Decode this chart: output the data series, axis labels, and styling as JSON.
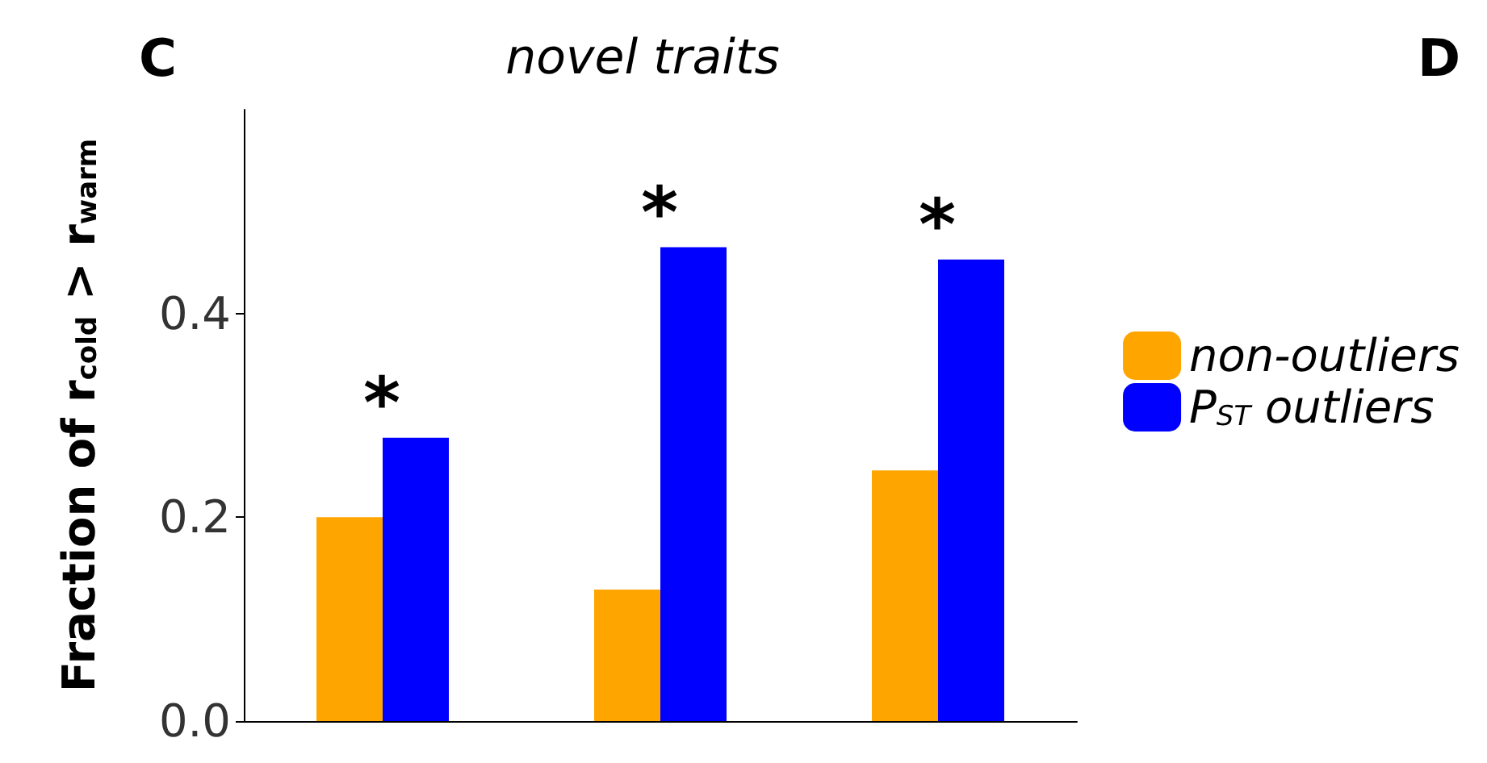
{
  "chart_data": {
    "type": "bar",
    "title": "novel traits",
    "ylabel": "Fraction of r$_{cold}$ > r$_{warm}$",
    "categories": [
      null,
      null,
      null
    ],
    "series": [
      {
        "name": "non-outliers",
        "color": "#ffa500",
        "values": [
          0.2,
          0.129,
          0.246
        ]
      },
      {
        "name": "P$_{ST}$ outliers",
        "color": "#0000ff",
        "values": [
          0.278,
          0.465,
          0.453
        ],
        "value_labels": [
          "*",
          "*",
          "*"
        ]
      }
    ],
    "ylim": [
      0,
      0.6
    ],
    "yticks": [
      {
        "value": 0,
        "label": "0.0"
      },
      {
        "value": 0.2,
        "label": "0.2"
      },
      {
        "value": 0.4,
        "label": "0.4"
      }
    ],
    "grid": false,
    "legend": "right",
    "annotations": [
      "C",
      "D"
    ]
  }
}
